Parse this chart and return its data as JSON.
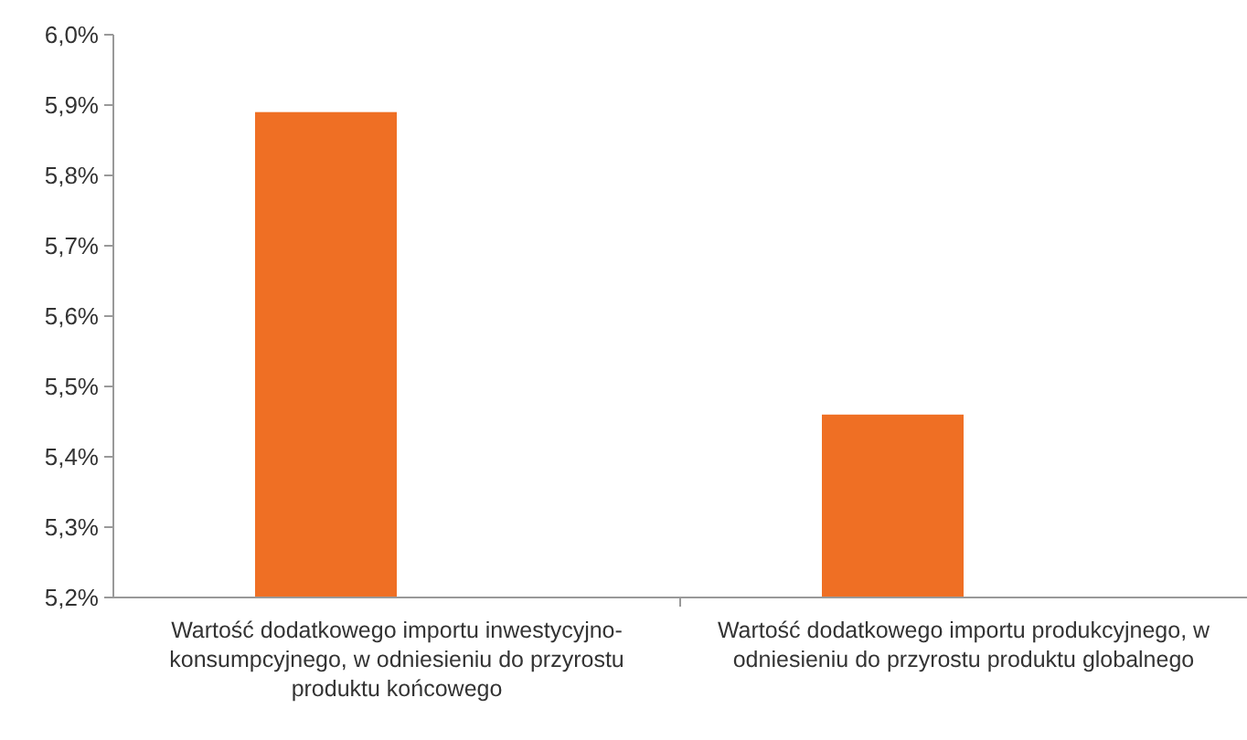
{
  "chart_data": {
    "type": "bar",
    "categories": [
      "Wartość dodatkowego importu inwestycyjno-konsumpcyjnego, w odniesieniu do przyrostu produktu końcowego",
      "Wartość dodatkowego importu produkcyjnego, w odniesieniu do przyrostu produktu globalnego"
    ],
    "values": [
      5.89,
      5.46
    ],
    "color": "#ef6f24",
    "ylim": [
      5.2,
      6.0
    ],
    "yticks": [
      {
        "value": 5.2,
        "label": "5,2%"
      },
      {
        "value": 5.3,
        "label": "5,3%"
      },
      {
        "value": 5.4,
        "label": "5,4%"
      },
      {
        "value": 5.5,
        "label": "5,5%"
      },
      {
        "value": 5.6,
        "label": "5,6%"
      },
      {
        "value": 5.7,
        "label": "5,7%"
      },
      {
        "value": 5.8,
        "label": "5,8%"
      },
      {
        "value": 5.9,
        "label": "5,9%"
      },
      {
        "value": 6.0,
        "label": "6,0%"
      }
    ],
    "grid": false
  }
}
